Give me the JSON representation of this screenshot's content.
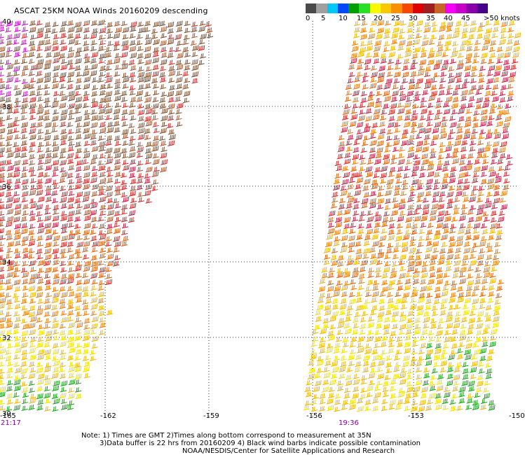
{
  "title": "ASCAT 25KM NOAA Winds 20160209 descending",
  "legend": {
    "colors": [
      "#4a4a4a",
      "#a0a0a0",
      "#00c8f8",
      "#0048f8",
      "#00a000",
      "#28e028",
      "#f8f800",
      "#f8c800",
      "#f89000",
      "#f84800",
      "#e00000",
      "#a01e1e",
      "#c86428",
      "#f800f8",
      "#c800c8",
      "#8800aa",
      "#48008a"
    ],
    "labels": [
      "0",
      "5",
      "10",
      "15",
      "20",
      "25",
      "30",
      "35",
      "40",
      "45",
      ">50 knots"
    ]
  },
  "axes": {
    "lat_labels": [
      "40",
      "38",
      "36",
      "34",
      "32",
      "30"
    ],
    "lon_labels": [
      "-165",
      "-162",
      "-159",
      "-156",
      "-153",
      "-150"
    ]
  },
  "passes": {
    "left_time": "21:17",
    "right_time": "19:36"
  },
  "footer": {
    "line1": "Note: 1) Times are GMT 2)Times along bottom correspond to measurement at 35N",
    "line2": "3)Data buffer is 22 hrs from 20160209 4) Black wind barbs indicate possible contamination",
    "line3": "NOAA/NESDIS/Center for Satellite Applications and Research"
  }
}
